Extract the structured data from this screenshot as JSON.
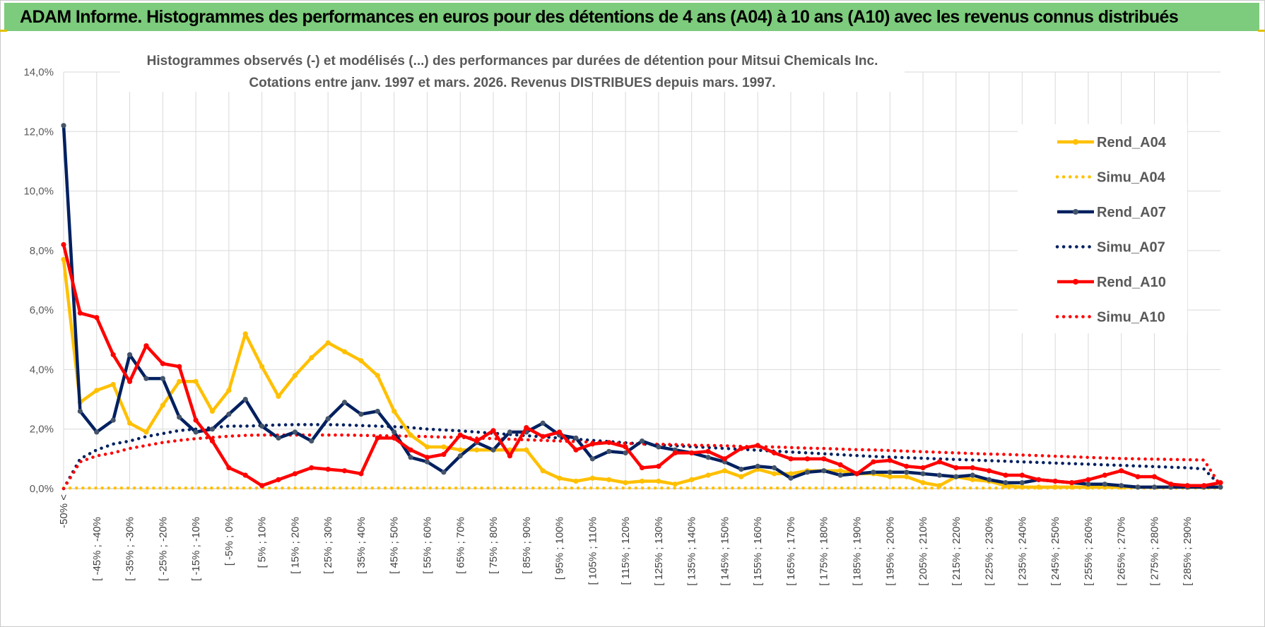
{
  "banner": {
    "title": "ADAM Informe. Histogrammes des performances en euros pour des détentions de 4 ans (A04) à 10 ans (A10) avec les revenus connus distribués"
  },
  "chart_data": {
    "type": "line",
    "title": "Histogrammes observés (-) et modélisés (...) des performances par durées de détention pour Mitsui Chemicals Inc.",
    "subtitle": "Cotations entre janv. 1997 et mars. 2026. Revenus DISTRIBUES depuis mars. 1997.",
    "ylim": [
      0,
      14
    ],
    "yticks": [
      "0,0%",
      "2,0%",
      "4,0%",
      "6,0%",
      "8,0%",
      "10,0%",
      "12,0%",
      "14,0%"
    ],
    "category_labels": [
      "-50% <",
      "[ -45% ; -40%",
      "[ -35% ; -30%",
      "[ -25% ; -20%",
      "[ -15% ; -10%",
      "[ -5% ; 0%",
      "[ 5% ; 10%",
      "[ 15% ; 20%",
      "[ 25% ; 30%",
      "[ 35% ; 40%",
      "[ 45% ; 50%",
      "[ 55% ; 60%",
      "[ 65% ; 70%",
      "[ 75% ; 80%",
      "[ 85% ; 90%",
      "[ 95% ; 100%",
      "[ 105% ; 110%",
      "[ 115% ; 120%",
      "[ 125% ; 130%",
      "[ 135% ; 140%",
      "[ 145% ; 150%",
      "[ 155% ; 160%",
      "[ 165% ; 170%",
      "[ 175% ; 180%",
      "[ 185% ; 190%",
      "[ 195% ; 200%",
      "[ 205% ; 210%",
      "[ 215% ; 220%",
      "[ 225% ; 230%",
      "[ 235% ; 240%",
      "[ 245% ; 250%",
      "[ 255% ; 260%",
      "[ 265% ; 270%",
      "[ 275% ; 280%",
      "[ 285% ; 290%"
    ],
    "legend_position": "right",
    "grid": true,
    "series": [
      {
        "name": "Rend_A04",
        "style": "solid",
        "color": "#ffc000",
        "values": [
          7.7,
          2.9,
          3.3,
          3.5,
          2.2,
          1.9,
          2.8,
          3.6,
          3.6,
          2.6,
          3.3,
          5.2,
          4.1,
          3.1,
          3.8,
          4.4,
          4.9,
          4.6,
          4.3,
          3.8,
          2.6,
          1.8,
          1.4,
          1.4,
          1.3,
          1.3,
          1.3,
          1.3,
          1.3,
          0.6,
          0.35,
          0.25,
          0.35,
          0.3,
          0.2,
          0.25,
          0.25,
          0.15,
          0.3,
          0.45,
          0.6,
          0.4,
          0.65,
          0.5,
          0.5,
          0.6,
          0.6,
          0.6,
          0.5,
          0.5,
          0.4,
          0.4,
          0.2,
          0.1,
          0.4,
          0.3,
          0.25,
          0.1,
          0.05,
          0.05,
          0.05,
          0.05,
          0.05,
          0.05,
          0.05,
          0.05,
          0.05,
          0.05,
          0.05,
          0.05,
          0.05
        ]
      },
      {
        "name": "Simu_A04",
        "style": "dotted",
        "color": "#ffc000",
        "values": [
          0.02,
          0.02,
          0.02,
          0.02,
          0.02,
          0.02,
          0.02,
          0.02,
          0.02,
          0.02,
          0.02,
          0.02,
          0.02,
          0.02,
          0.02,
          0.02,
          0.02,
          0.02,
          0.02,
          0.02,
          0.02,
          0.02,
          0.02,
          0.02,
          0.02,
          0.02,
          0.02,
          0.02,
          0.02,
          0.02,
          0.02,
          0.02,
          0.02,
          0.02,
          0.02,
          0.02,
          0.02,
          0.02,
          0.02,
          0.02,
          0.02,
          0.02,
          0.02,
          0.02,
          0.02,
          0.02,
          0.02,
          0.02,
          0.02,
          0.02,
          0.02,
          0.02,
          0.02,
          0.02,
          0.02,
          0.02,
          0.02,
          0.02,
          0.02,
          0.02,
          0.02,
          0.02,
          0.02,
          0.02,
          0.02,
          0.02,
          0.02,
          0.02,
          0.02,
          0.02,
          0.02
        ]
      },
      {
        "name": "Rend_A07",
        "style": "solid",
        "color": "#002060",
        "values": [
          12.2,
          2.6,
          1.9,
          2.3,
          4.5,
          3.7,
          3.7,
          2.4,
          1.9,
          2.0,
          2.5,
          3.0,
          2.1,
          1.7,
          1.9,
          1.6,
          2.35,
          2.9,
          2.5,
          2.6,
          1.9,
          1.05,
          0.9,
          0.55,
          1.1,
          1.55,
          1.3,
          1.9,
          1.9,
          2.2,
          1.8,
          1.7,
          1.0,
          1.25,
          1.2,
          1.6,
          1.4,
          1.3,
          1.2,
          1.05,
          0.9,
          0.65,
          0.75,
          0.7,
          0.35,
          0.55,
          0.6,
          0.45,
          0.5,
          0.55,
          0.55,
          0.55,
          0.5,
          0.45,
          0.4,
          0.45,
          0.3,
          0.2,
          0.2,
          0.3,
          0.25,
          0.2,
          0.15,
          0.15,
          0.1,
          0.05,
          0.05,
          0.05,
          0.05,
          0.05,
          0.05
        ]
      },
      {
        "name": "Simu_A07",
        "style": "dotted",
        "color": "#002060",
        "values": [
          0,
          1.0,
          1.3,
          1.5,
          1.6,
          1.75,
          1.85,
          1.95,
          2.0,
          2.05,
          2.1,
          2.1,
          2.12,
          2.14,
          2.15,
          2.15,
          2.15,
          2.14,
          2.12,
          2.1,
          2.08,
          2.05,
          2.0,
          1.97,
          1.94,
          1.9,
          1.86,
          1.82,
          1.78,
          1.74,
          1.7,
          1.66,
          1.62,
          1.58,
          1.54,
          1.5,
          1.47,
          1.44,
          1.41,
          1.38,
          1.35,
          1.32,
          1.29,
          1.26,
          1.23,
          1.2,
          1.17,
          1.14,
          1.11,
          1.08,
          1.06,
          1.04,
          1.02,
          1.0,
          0.98,
          0.96,
          0.94,
          0.92,
          0.9,
          0.88,
          0.86,
          0.84,
          0.82,
          0.8,
          0.78,
          0.76,
          0.74,
          0.72,
          0.7,
          0.66,
          0.1
        ]
      },
      {
        "name": "Rend_A10",
        "style": "solid",
        "color": "#ff0000",
        "values": [
          8.2,
          5.9,
          5.75,
          4.5,
          3.6,
          4.8,
          4.2,
          4.1,
          2.3,
          1.6,
          0.7,
          0.45,
          0.1,
          0.3,
          0.5,
          0.7,
          0.65,
          0.6,
          0.5,
          1.7,
          1.7,
          1.3,
          1.05,
          1.15,
          1.8,
          1.6,
          1.95,
          1.1,
          2.05,
          1.75,
          1.9,
          1.3,
          1.5,
          1.55,
          1.4,
          0.7,
          0.75,
          1.2,
          1.2,
          1.25,
          1.0,
          1.35,
          1.45,
          1.2,
          1.0,
          1.0,
          1.0,
          0.8,
          0.5,
          0.9,
          0.95,
          0.75,
          0.7,
          0.9,
          0.7,
          0.7,
          0.6,
          0.45,
          0.45,
          0.3,
          0.25,
          0.2,
          0.3,
          0.45,
          0.6,
          0.4,
          0.4,
          0.15,
          0.1,
          0.1,
          0.2
        ]
      },
      {
        "name": "Simu_A10",
        "style": "dotted",
        "color": "#ff0000",
        "values": [
          0,
          0.9,
          1.1,
          1.2,
          1.35,
          1.45,
          1.55,
          1.62,
          1.68,
          1.72,
          1.76,
          1.79,
          1.8,
          1.8,
          1.8,
          1.8,
          1.8,
          1.8,
          1.79,
          1.78,
          1.77,
          1.76,
          1.75,
          1.73,
          1.72,
          1.7,
          1.68,
          1.66,
          1.64,
          1.62,
          1.6,
          1.58,
          1.56,
          1.54,
          1.52,
          1.5,
          1.49,
          1.48,
          1.46,
          1.45,
          1.44,
          1.42,
          1.41,
          1.4,
          1.38,
          1.36,
          1.35,
          1.33,
          1.31,
          1.3,
          1.28,
          1.26,
          1.24,
          1.22,
          1.2,
          1.18,
          1.16,
          1.15,
          1.13,
          1.11,
          1.09,
          1.07,
          1.05,
          1.03,
          1.01,
          1.0,
          0.99,
          0.98,
          0.97,
          0.96,
          0.1
        ]
      }
    ]
  }
}
